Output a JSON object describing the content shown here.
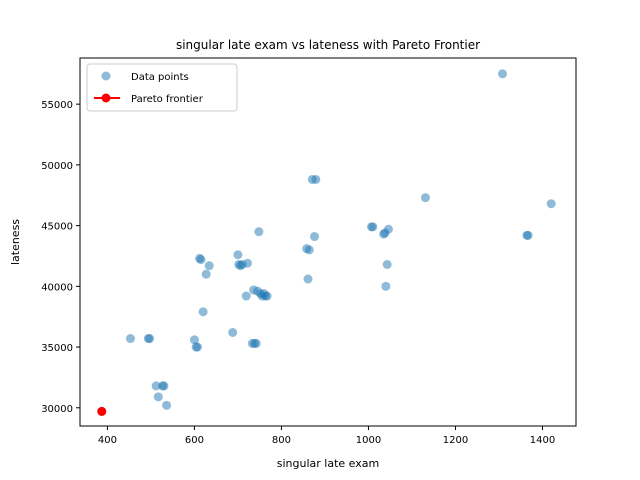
{
  "chart_data": {
    "type": "scatter",
    "title": "singular late exam vs lateness with Pareto Frontier",
    "xlabel": "singular late exam",
    "ylabel": "lateness",
    "xlim": [
      337,
      1477
    ],
    "ylim": [
      28500,
      58800
    ],
    "xticks": [
      400,
      600,
      800,
      1000,
      1200,
      1400
    ],
    "yticks": [
      30000,
      35000,
      40000,
      45000,
      50000,
      55000
    ],
    "grid": false,
    "legend_position": "top-left",
    "series": [
      {
        "name": "Data points",
        "color": "#1f77b4",
        "points": [
          [
            387,
            29700
          ],
          [
            453,
            35700
          ],
          [
            494,
            35700
          ],
          [
            497,
            35700
          ],
          [
            512,
            31800
          ],
          [
            517,
            30900
          ],
          [
            527,
            31800
          ],
          [
            530,
            31800
          ],
          [
            536,
            30200
          ],
          [
            600,
            35600
          ],
          [
            604,
            35000
          ],
          [
            607,
            35000
          ],
          [
            612,
            42300
          ],
          [
            615,
            42200
          ],
          [
            620,
            37900
          ],
          [
            627,
            41000
          ],
          [
            634,
            41700
          ],
          [
            688,
            36200
          ],
          [
            700,
            42600
          ],
          [
            702,
            41800
          ],
          [
            706,
            41700
          ],
          [
            710,
            41800
          ],
          [
            719,
            39200
          ],
          [
            722,
            41900
          ],
          [
            733,
            35300
          ],
          [
            736,
            39700
          ],
          [
            738,
            35300
          ],
          [
            742,
            35300
          ],
          [
            745,
            39600
          ],
          [
            748,
            44500
          ],
          [
            752,
            39400
          ],
          [
            756,
            39200
          ],
          [
            760,
            39400
          ],
          [
            763,
            39200
          ],
          [
            767,
            39200
          ],
          [
            858,
            43100
          ],
          [
            861,
            40600
          ],
          [
            864,
            43000
          ],
          [
            871,
            48800
          ],
          [
            876,
            44100
          ],
          [
            879,
            48800
          ],
          [
            1007,
            44900
          ],
          [
            1010,
            44900
          ],
          [
            1035,
            44300
          ],
          [
            1038,
            44400
          ],
          [
            1040,
            40000
          ],
          [
            1043,
            41800
          ],
          [
            1046,
            44700
          ],
          [
            1131,
            47300
          ],
          [
            1308,
            57500
          ],
          [
            1364,
            44200
          ],
          [
            1367,
            44200
          ],
          [
            1420,
            46800
          ]
        ]
      },
      {
        "name": "Pareto frontier",
        "color": "#ff0000",
        "points": [
          [
            387,
            29700
          ]
        ]
      }
    ]
  }
}
